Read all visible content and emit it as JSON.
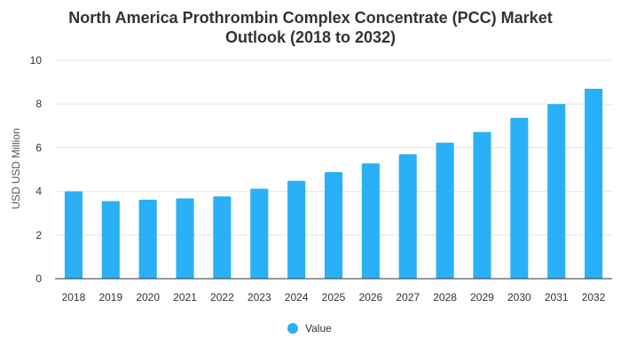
{
  "chart_data": {
    "type": "bar",
    "title_lines": [
      "North America Prothrombin Complex Concentrate (PCC) Market",
      "Outlook (2018 to 2032)"
    ],
    "xlabel": "",
    "ylabel": "USD USD Million",
    "ylim": [
      0,
      10
    ],
    "yticks": [
      "0",
      "2",
      "4",
      "6",
      "8",
      "10"
    ],
    "categories": [
      "2018",
      "2019",
      "2020",
      "2021",
      "2022",
      "2023",
      "2024",
      "2025",
      "2026",
      "2027",
      "2028",
      "2029",
      "2030",
      "2031",
      "2032"
    ],
    "series": [
      {
        "name": "Value",
        "color": "#2ab0f6",
        "values": [
          4.0,
          3.55,
          3.62,
          3.68,
          3.77,
          4.12,
          4.48,
          4.88,
          5.28,
          5.7,
          6.23,
          6.72,
          7.37,
          8.0,
          8.7
        ]
      }
    ],
    "grid": true,
    "legend": "bottom-center"
  }
}
